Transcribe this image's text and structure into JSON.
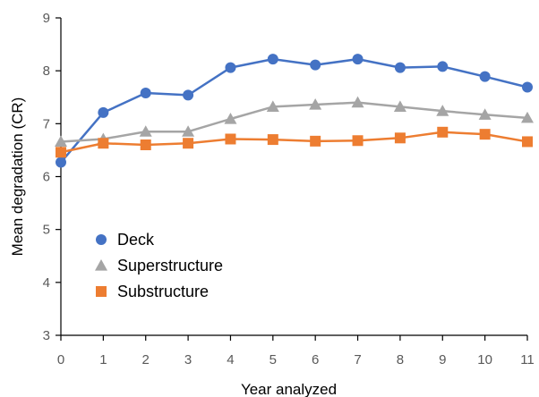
{
  "chart_data": {
    "type": "line",
    "title": "",
    "xlabel": "Year analyzed",
    "ylabel": "Mean degradation (CR)",
    "x": [
      0,
      1,
      2,
      3,
      4,
      5,
      6,
      7,
      8,
      9,
      10,
      11
    ],
    "xlim": [
      0,
      11
    ],
    "ylim": [
      3,
      9
    ],
    "y_ticks": [
      3,
      4,
      5,
      6,
      7,
      8,
      9
    ],
    "grid": false,
    "legend_position": "bottom-left",
    "series": [
      {
        "name": "Deck",
        "marker": "circle",
        "color": "#4472C4",
        "values": [
          6.27,
          7.21,
          7.58,
          7.54,
          8.06,
          8.22,
          8.11,
          8.22,
          8.06,
          8.08,
          7.89,
          7.69
        ]
      },
      {
        "name": "Superstructure",
        "marker": "triangle",
        "color": "#A5A5A5",
        "values": [
          6.66,
          6.71,
          6.85,
          6.85,
          7.09,
          7.32,
          7.36,
          7.4,
          7.32,
          7.24,
          7.17,
          7.11
        ]
      },
      {
        "name": "Substructure",
        "marker": "square",
        "color": "#ED7D31",
        "values": [
          6.46,
          6.63,
          6.6,
          6.63,
          6.71,
          6.7,
          6.67,
          6.68,
          6.73,
          6.84,
          6.8,
          6.66
        ]
      }
    ]
  }
}
